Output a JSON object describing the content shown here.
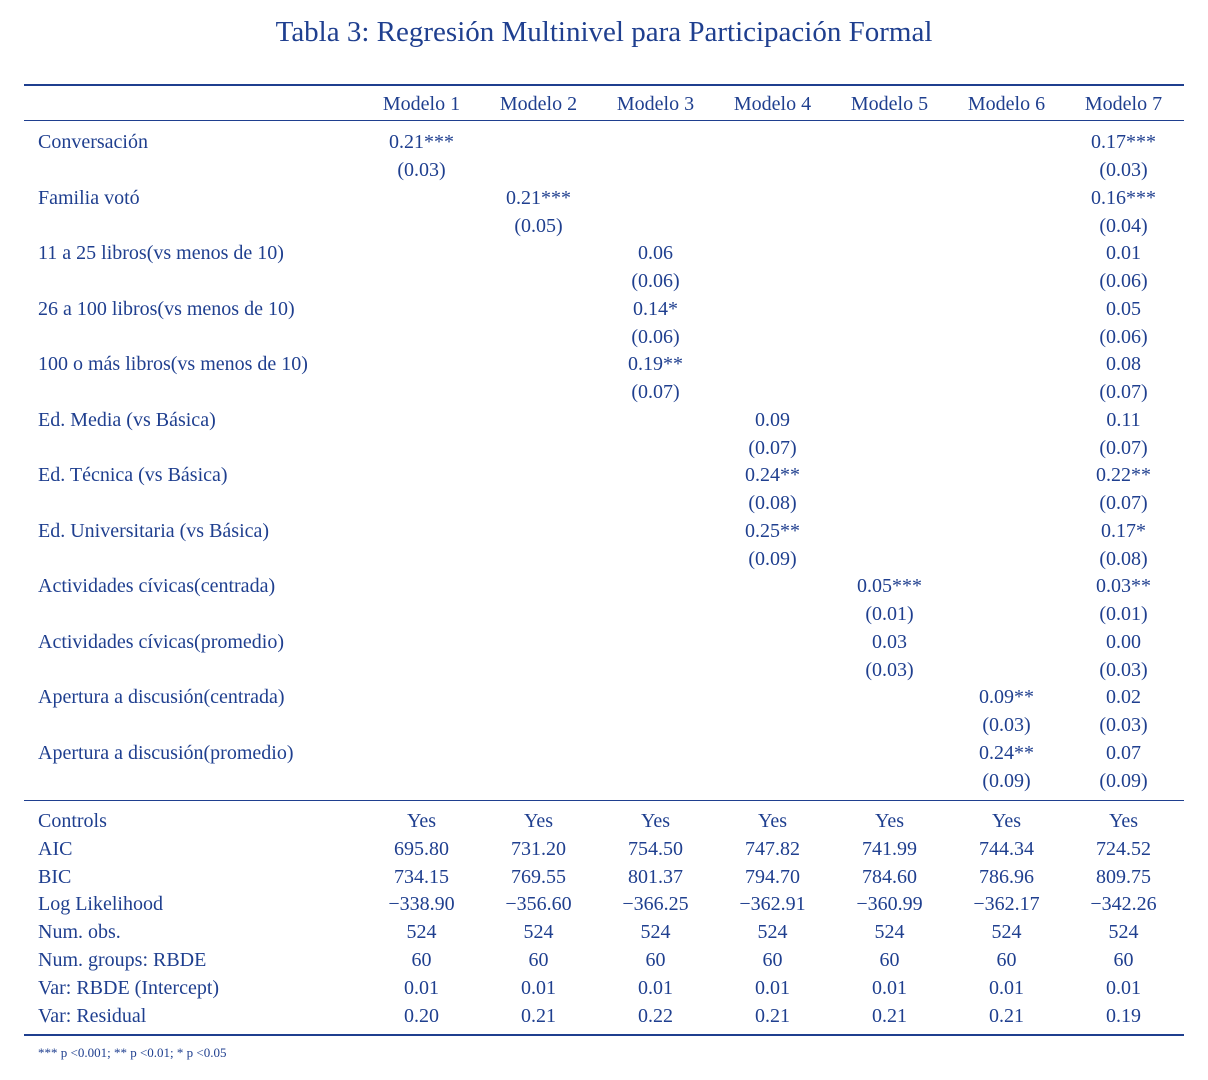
{
  "title": "Tabla 3:  Regresión Multinivel para Participación Formal",
  "models": [
    "Modelo 1",
    "Modelo 2",
    "Modelo 3",
    "Modelo 4",
    "Modelo 5",
    "Modelo 6",
    "Modelo 7"
  ],
  "coefficients": [
    {
      "label": "Conversación",
      "estimates": [
        "0.21***",
        "",
        "",
        "",
        "",
        "",
        "0.17***"
      ],
      "se": [
        "(0.03)",
        "",
        "",
        "",
        "",
        "",
        "(0.03)"
      ]
    },
    {
      "label": "Familia votó",
      "estimates": [
        "",
        "0.21***",
        "",
        "",
        "",
        "",
        "0.16***"
      ],
      "se": [
        "",
        "(0.05)",
        "",
        "",
        "",
        "",
        "(0.04)"
      ]
    },
    {
      "label": "11 a 25 libros(vs menos de 10)",
      "estimates": [
        "",
        "",
        "0.06",
        "",
        "",
        "",
        "0.01"
      ],
      "se": [
        "",
        "",
        "(0.06)",
        "",
        "",
        "",
        "(0.06)"
      ]
    },
    {
      "label": "26 a 100 libros(vs menos de 10)",
      "estimates": [
        "",
        "",
        "0.14*",
        "",
        "",
        "",
        "0.05"
      ],
      "se": [
        "",
        "",
        "(0.06)",
        "",
        "",
        "",
        "(0.06)"
      ]
    },
    {
      "label": "100 o más libros(vs menos de 10)",
      "estimates": [
        "",
        "",
        "0.19**",
        "",
        "",
        "",
        "0.08"
      ],
      "se": [
        "",
        "",
        "(0.07)",
        "",
        "",
        "",
        "(0.07)"
      ]
    },
    {
      "label": "Ed. Media (vs Básica)",
      "estimates": [
        "",
        "",
        "",
        "0.09",
        "",
        "",
        "0.11"
      ],
      "se": [
        "",
        "",
        "",
        "(0.07)",
        "",
        "",
        "(0.07)"
      ]
    },
    {
      "label": "Ed. Técnica (vs Básica)",
      "estimates": [
        "",
        "",
        "",
        "0.24**",
        "",
        "",
        "0.22**"
      ],
      "se": [
        "",
        "",
        "",
        "(0.08)",
        "",
        "",
        "(0.07)"
      ]
    },
    {
      "label": "Ed. Universitaria (vs Básica)",
      "estimates": [
        "",
        "",
        "",
        "0.25**",
        "",
        "",
        "0.17*"
      ],
      "se": [
        "",
        "",
        "",
        "(0.09)",
        "",
        "",
        "(0.08)"
      ]
    },
    {
      "label": "Actividades cívicas(centrada)",
      "estimates": [
        "",
        "",
        "",
        "",
        "0.05***",
        "",
        "0.03**"
      ],
      "se": [
        "",
        "",
        "",
        "",
        "(0.01)",
        "",
        "(0.01)"
      ]
    },
    {
      "label": "Actividades cívicas(promedio)",
      "estimates": [
        "",
        "",
        "",
        "",
        "0.03",
        "",
        "0.00"
      ],
      "se": [
        "",
        "",
        "",
        "",
        "(0.03)",
        "",
        "(0.03)"
      ]
    },
    {
      "label": "Apertura a discusión(centrada)",
      "estimates": [
        "",
        "",
        "",
        "",
        "",
        "0.09**",
        "0.02"
      ],
      "se": [
        "",
        "",
        "",
        "",
        "",
        "(0.03)",
        "(0.03)"
      ]
    },
    {
      "label": "Apertura a discusión(promedio)",
      "estimates": [
        "",
        "",
        "",
        "",
        "",
        "0.24**",
        "0.07"
      ],
      "se": [
        "",
        "",
        "",
        "",
        "",
        "(0.09)",
        "(0.09)"
      ]
    }
  ],
  "statistics": [
    {
      "label": "Controls",
      "values": [
        "Yes",
        "Yes",
        "Yes",
        "Yes",
        "Yes",
        "Yes",
        "Yes"
      ]
    },
    {
      "label": "AIC",
      "values": [
        "695.80",
        "731.20",
        "754.50",
        "747.82",
        "741.99",
        "744.34",
        "724.52"
      ]
    },
    {
      "label": "BIC",
      "values": [
        "734.15",
        "769.55",
        "801.37",
        "794.70",
        "784.60",
        "786.96",
        "809.75"
      ]
    },
    {
      "label": "Log Likelihood",
      "values": [
        "−338.90",
        "−356.60",
        "−366.25",
        "−362.91",
        "−360.99",
        "−362.17",
        "−342.26"
      ]
    },
    {
      "label": "Num. obs.",
      "values": [
        "524",
        "524",
        "524",
        "524",
        "524",
        "524",
        "524"
      ]
    },
    {
      "label": "Num. groups: RBDE",
      "values": [
        "60",
        "60",
        "60",
        "60",
        "60",
        "60",
        "60"
      ]
    },
    {
      "label": "Var: RBDE (Intercept)",
      "values": [
        "0.01",
        "0.01",
        "0.01",
        "0.01",
        "0.01",
        "0.01",
        "0.01"
      ]
    },
    {
      "label": "Var: Residual",
      "values": [
        "0.20",
        "0.21",
        "0.22",
        "0.21",
        "0.21",
        "0.21",
        "0.19"
      ]
    }
  ],
  "note": "*** p <0.001; ** p <0.01; * p <0.05"
}
